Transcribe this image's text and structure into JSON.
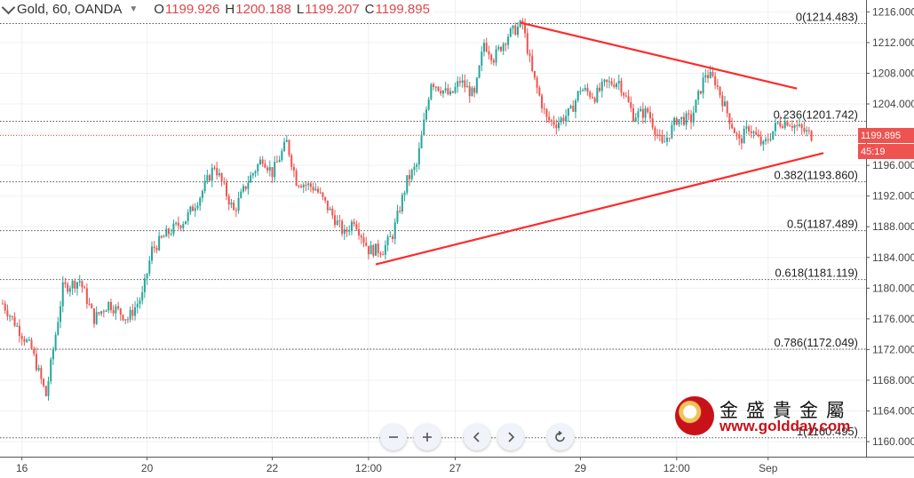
{
  "header": {
    "symbol": "Gold, 60, OANDA",
    "open_label": "O",
    "open": "1199.926",
    "high_label": "H",
    "high": "1200.188",
    "low_label": "L",
    "low": "1199.207",
    "close_label": "C",
    "close": "1199.895"
  },
  "price_axis": {
    "ticks": [
      "1216.000",
      "1212.000",
      "1208.000",
      "1204.000",
      "1200.000",
      "1196.000",
      "1192.000",
      "1188.000",
      "1184.000",
      "1180.000",
      "1176.000",
      "1172.000",
      "1168.000",
      "1164.000",
      "1160.000"
    ],
    "last_price": "1199.895",
    "countdown": "45:19"
  },
  "time_axis": {
    "labels": [
      "16",
      "20",
      "22",
      "12:00",
      "27",
      "29",
      "12:00",
      "Sep"
    ]
  },
  "watermark": {
    "chinese": "金盛貴金屬",
    "url": "www.goldday.com"
  },
  "colors": {
    "up": "#26a69a",
    "down": "#ef5350",
    "trendline": "#ff2a2a",
    "last_price_bg": "#ef5350",
    "countdown_bg": "#ef5350"
  },
  "nav_icons": [
    "zoom-out-icon",
    "zoom-in-icon",
    "scroll-left-icon",
    "scroll-right-icon",
    "reset-icon"
  ],
  "chart_data": {
    "type": "candlestick",
    "symbol": "Gold",
    "interval": "60",
    "source": "OANDA",
    "ylim": [
      1158.5,
      1217.2
    ],
    "fibonacci": [
      {
        "label": "0(1214.483)",
        "ratio": 0,
        "price": 1214.483
      },
      {
        "label": "0.236(1201.742)",
        "ratio": 0.236,
        "price": 1201.742
      },
      {
        "label": "0.382(1193.860)",
        "ratio": 0.382,
        "price": 1193.86
      },
      {
        "label": "0.5(1187.489)",
        "ratio": 0.5,
        "price": 1187.489
      },
      {
        "label": "0.618(1181.119)",
        "ratio": 0.618,
        "price": 1181.119
      },
      {
        "label": "0.786(1172.049)",
        "ratio": 0.786,
        "price": 1172.049
      },
      {
        "label": "1(1160.495)",
        "ratio": 1,
        "price": 1160.495
      }
    ],
    "price_path_bar_index": [
      0,
      12,
      18,
      22,
      25,
      32,
      38,
      44,
      52,
      58,
      62,
      68,
      76,
      82,
      88,
      96,
      102,
      108,
      112,
      118,
      122,
      130,
      136,
      142,
      146,
      152,
      158,
      162,
      168,
      172,
      178,
      182,
      186,
      190,
      196,
      200,
      204,
      210,
      216,
      220,
      226,
      230,
      236,
      240,
      246,
      250,
      256,
      262,
      268,
      274,
      280,
      286,
      292,
      296,
      302,
      306,
      310,
      316,
      322,
      326,
      330,
      336,
      341
    ],
    "price_path": [
      1178,
      1172,
      1166,
      1174,
      1180,
      1181,
      1176,
      1178,
      1176,
      1179,
      1185,
      1187,
      1189,
      1192,
      1196,
      1190,
      1194,
      1197,
      1195,
      1199,
      1194,
      1193,
      1190,
      1187,
      1189,
      1185,
      1185,
      1187,
      1194,
      1196,
      1207,
      1206,
      1205,
      1207,
      1205,
      1212,
      1210,
      1213,
      1214.4,
      1208,
      1202,
      1201.5,
      1203,
      1206,
      1205,
      1206.5,
      1207,
      1202.5,
      1203,
      1198.5,
      1202,
      1202,
      1208,
      1207,
      1202,
      1199,
      1201,
      1198.5,
      1201.5,
      1201.8,
      1201,
      1199.895
    ],
    "trendlines": [
      {
        "name": "upper",
        "from": {
          "bar": 215,
          "price": 1214.6
        },
        "to": {
          "bar": 330,
          "price": 1206
        }
      },
      {
        "name": "lower",
        "from": {
          "bar": 155,
          "price": 1183.1
        },
        "to": {
          "bar": 341,
          "price": 1197.6
        }
      }
    ]
  }
}
